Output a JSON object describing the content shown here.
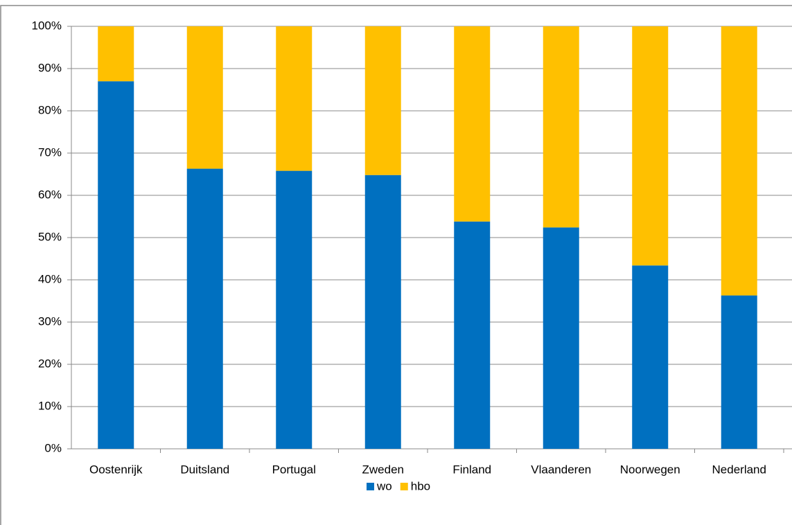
{
  "chart_data": {
    "type": "stacked_bar",
    "categories": [
      "Oostenrijk",
      "Duitsland",
      "Portugal",
      "Zweden",
      "Finland",
      "Vlaanderen",
      "Noorwegen",
      "Nederland"
    ],
    "series": [
      {
        "name": "wo",
        "color": "#0070c0",
        "values": [
          87,
          66.3,
          65.8,
          64.8,
          53.8,
          52.4,
          43.4,
          36.3
        ]
      },
      {
        "name": "hbo",
        "color": "#ffc000",
        "values": [
          13,
          33.7,
          34.2,
          35.2,
          46.2,
          47.6,
          56.6,
          63.7
        ]
      }
    ],
    "ylim": [
      0,
      100
    ],
    "yticks": [
      {
        "value": 0,
        "label": "0%"
      },
      {
        "value": 10,
        "label": "10%"
      },
      {
        "value": 20,
        "label": "20%"
      },
      {
        "value": 30,
        "label": "30%"
      },
      {
        "value": 40,
        "label": "40%"
      },
      {
        "value": 50,
        "label": "50%"
      },
      {
        "value": 60,
        "label": "60%"
      },
      {
        "value": 70,
        "label": "70%"
      },
      {
        "value": 80,
        "label": "80%"
      },
      {
        "value": 90,
        "label": "90%"
      },
      {
        "value": 100,
        "label": "100%"
      }
    ],
    "grid": true,
    "legend": "bottom"
  }
}
